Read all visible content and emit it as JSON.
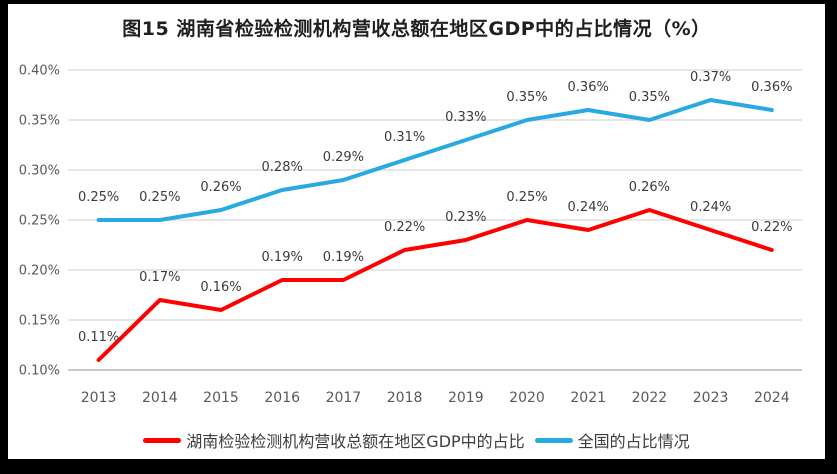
{
  "title": "图15 湖南省检验检测机构营收总额在地区GDP中的占比情况（%）",
  "colors": {
    "hunan_line": "#FF0000",
    "national_line": "#29A9E1",
    "gridline": "#E3E3E3",
    "axis_line": "#C9C9C9",
    "tick_text": "#595959",
    "data_label_text": "#3b3b3b",
    "title_text": "#1f1f1f",
    "legend_text": "#3d3d3d",
    "frame": "#000000",
    "background": "#ffffff"
  },
  "chart_data": {
    "type": "line",
    "categories": [
      "2013",
      "2014",
      "2015",
      "2016",
      "2017",
      "2018",
      "2019",
      "2020",
      "2021",
      "2022",
      "2023",
      "2024"
    ],
    "series": [
      {
        "name": "湖南检验检测机构营收总额在地区GDP中的占比",
        "color": "#FF0000",
        "values": [
          0.11,
          0.17,
          0.16,
          0.19,
          0.19,
          0.22,
          0.23,
          0.25,
          0.24,
          0.26,
          0.24,
          0.22
        ],
        "point_labels": [
          "0.11%",
          "0.17%",
          "0.16%",
          "0.19%",
          "0.19%",
          "0.22%",
          "0.23%",
          "0.25%",
          "0.24%",
          "0.26%",
          "0.24%",
          "0.22%"
        ]
      },
      {
        "name": "全国的占比情况",
        "color": "#29A9E1",
        "values": [
          0.25,
          0.25,
          0.26,
          0.28,
          0.29,
          0.31,
          0.33,
          0.35,
          0.36,
          0.35,
          0.37,
          0.36
        ],
        "point_labels": [
          "0.25%",
          "0.25%",
          "0.26%",
          "0.28%",
          "0.29%",
          "0.31%",
          "0.33%",
          "0.35%",
          "0.36%",
          "0.35%",
          "0.37%",
          "0.36%"
        ]
      }
    ],
    "ylim": [
      0.1,
      0.4
    ],
    "yticks": [
      {
        "value": 0.1,
        "label": "0.10%"
      },
      {
        "value": 0.15,
        "label": "0.15%"
      },
      {
        "value": 0.2,
        "label": "0.20%"
      },
      {
        "value": 0.25,
        "label": "0.25%"
      },
      {
        "value": 0.3,
        "label": "0.30%"
      },
      {
        "value": 0.35,
        "label": "0.35%"
      },
      {
        "value": 0.4,
        "label": "0.40%"
      }
    ],
    "xlabel": "",
    "ylabel": "",
    "unit": "%",
    "grid": true,
    "legend_position": "bottom",
    "data_labels_visible": true
  }
}
